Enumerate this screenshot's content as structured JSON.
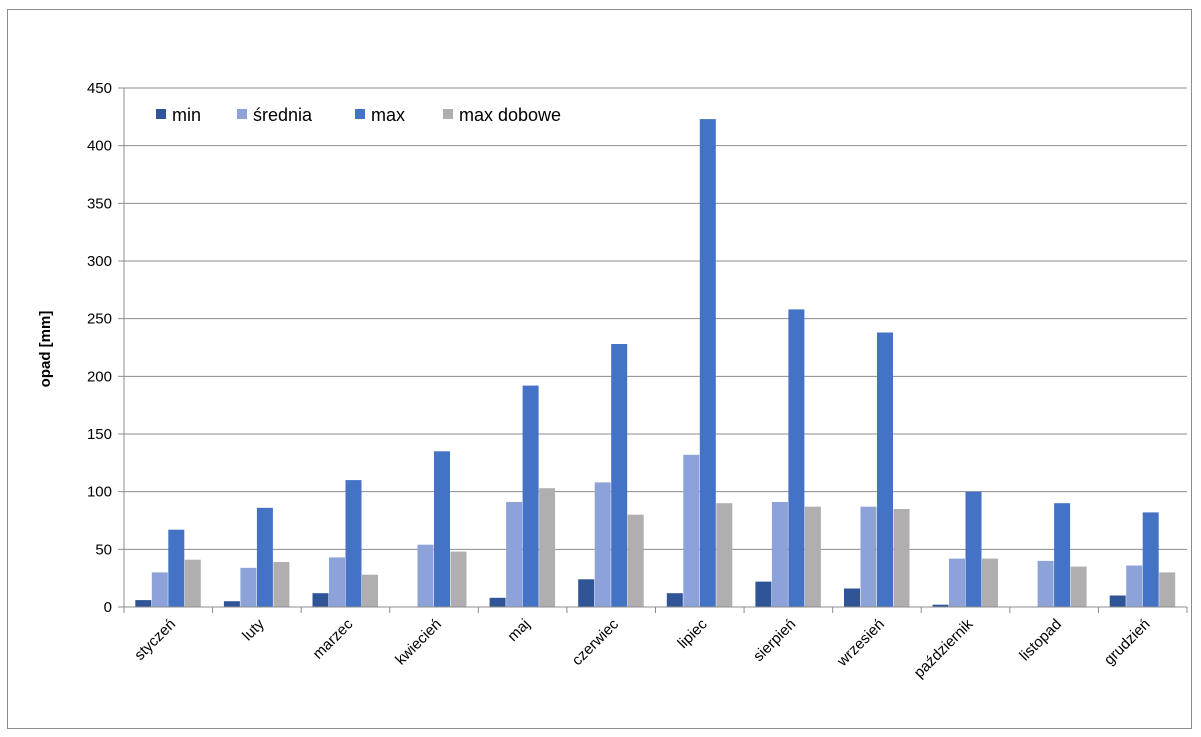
{
  "chart_data": {
    "type": "bar",
    "title": "",
    "xlabel": "",
    "ylabel": "opad [mm]",
    "ylim": [
      0,
      450
    ],
    "ytick_step": 50,
    "grid": true,
    "legend_position": "top-left",
    "categories": [
      "styczeń",
      "luty",
      "marzec",
      "kwiecień",
      "maj",
      "czerwiec",
      "lipiec",
      "sierpień",
      "wrzesień",
      "październik",
      "listopad",
      "grudzień"
    ],
    "series": [
      {
        "name": "min",
        "color": "#2f5597",
        "values": [
          6,
          5,
          12,
          0,
          8,
          24,
          12,
          22,
          16,
          2,
          0,
          10
        ]
      },
      {
        "name": "średnia",
        "color": "#8ea2da",
        "values": [
          30,
          34,
          43,
          54,
          91,
          108,
          132,
          91,
          87,
          42,
          40,
          36
        ]
      },
      {
        "name": "max",
        "color": "#4472c4",
        "values": [
          67,
          86,
          110,
          135,
          192,
          228,
          423,
          258,
          238,
          100,
          90,
          82
        ]
      },
      {
        "name": "max dobowe",
        "color": "#b0aeae",
        "values": [
          41,
          39,
          28,
          48,
          103,
          80,
          90,
          87,
          85,
          42,
          35,
          30
        ]
      }
    ]
  }
}
